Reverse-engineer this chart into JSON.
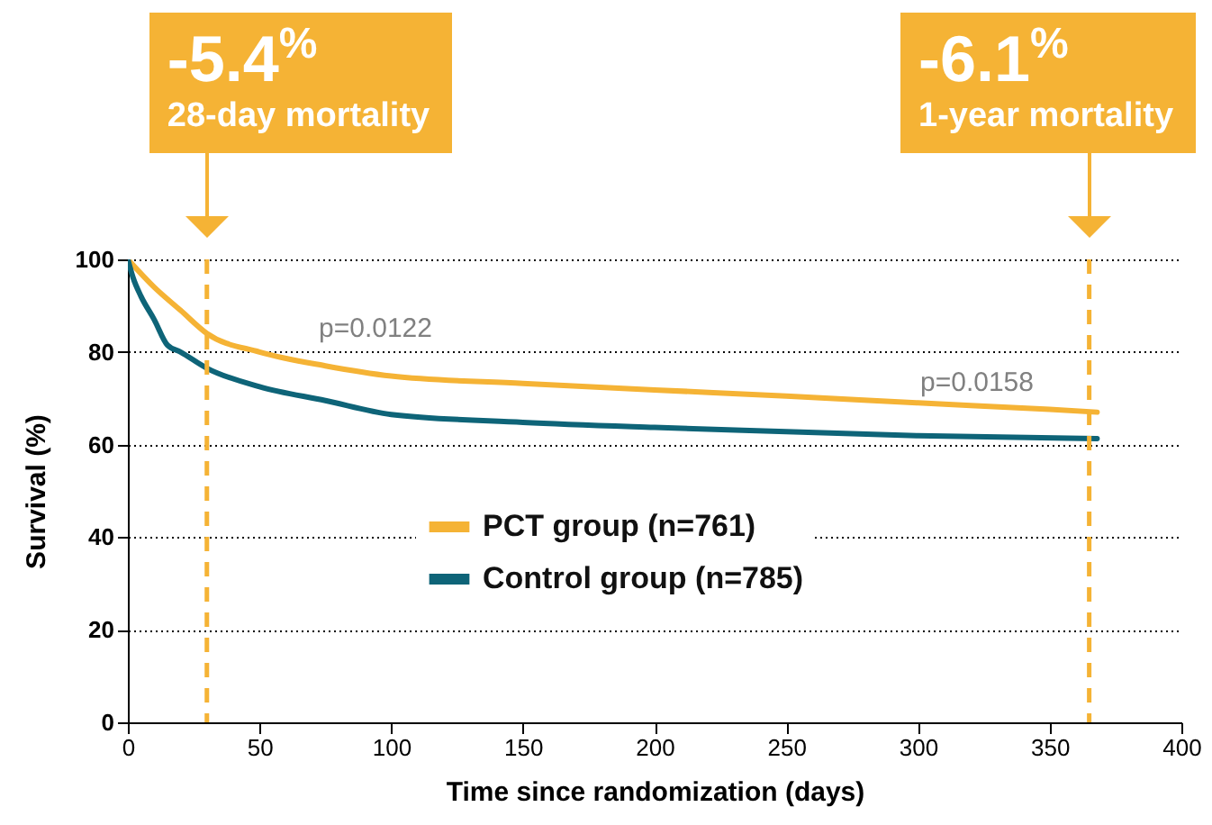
{
  "chart_data": {
    "type": "line",
    "xlabel": "Time since randomization (days)",
    "ylabel": "Survival (%)",
    "xlim": [
      0,
      400
    ],
    "xticks": [
      0,
      50,
      100,
      150,
      200,
      250,
      300,
      350,
      400
    ],
    "ylim": [
      0,
      100
    ],
    "yticks": [
      0,
      20,
      40,
      60,
      80,
      100
    ],
    "grid": "y",
    "legend": "center",
    "marker": "none",
    "line_style": "solid",
    "series": [
      {
        "name": "PCT group (n=761)",
        "color": "#f5b335",
        "x": [
          0,
          10,
          20,
          30,
          50,
          75,
          100,
          150,
          200,
          250,
          300,
          350,
          368
        ],
        "values": [
          100,
          94,
          89,
          84,
          80,
          77,
          74.8,
          73.2,
          71.8,
          70.5,
          69,
          67.6,
          67
        ]
      },
      {
        "name": "Control group (n=785)",
        "color": "#0e6478",
        "x": [
          0,
          2,
          5,
          10,
          15,
          20,
          30,
          50,
          75,
          100,
          150,
          200,
          250,
          300,
          368
        ],
        "values": [
          100,
          96,
          92,
          87,
          81.5,
          80,
          76.5,
          72.5,
          69.5,
          66.5,
          64.8,
          63.7,
          62.8,
          61.9,
          61.3
        ]
      }
    ],
    "ref_lines": [
      {
        "axis": "x",
        "value": 30,
        "label": "-5.4$^{%}$\n28-day mortality",
        "color": "#f5b335",
        "line_style": "dashed"
      },
      {
        "axis": "x",
        "value": 365,
        "label": "-6.1$^{%}$\n1-year mortality",
        "color": "#f5b335",
        "line_style": "dashed"
      }
    ],
    "annotations": [
      "p=0.0122",
      "p=0.0158"
    ]
  }
}
